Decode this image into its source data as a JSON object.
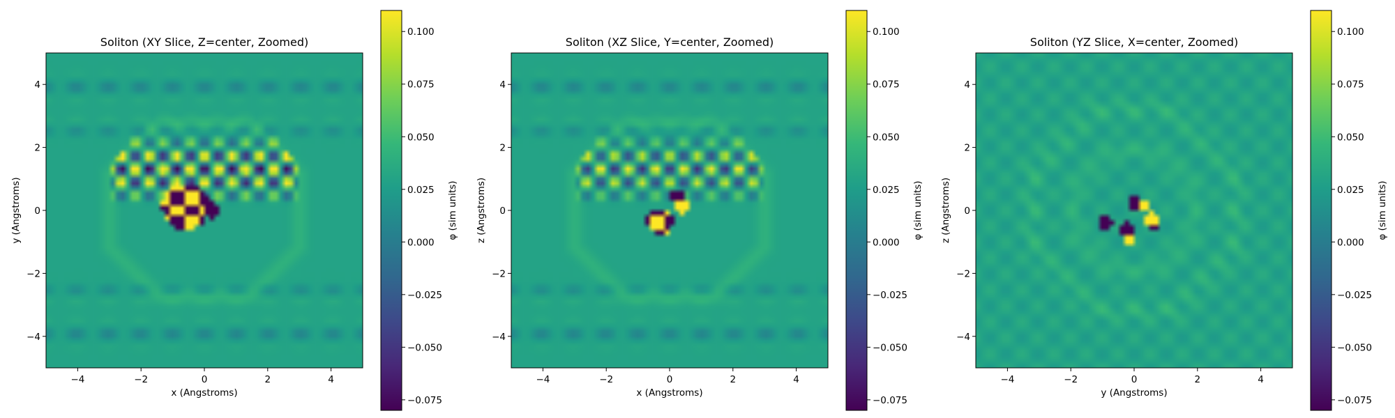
{
  "colors": {
    "viridis": [
      "#440154",
      "#482878",
      "#3e4989",
      "#31688e",
      "#26828e",
      "#1f9e89",
      "#35b779",
      "#6ece58",
      "#b5de2b",
      "#fde725"
    ],
    "axis": "#000000",
    "background": "#ffffff"
  },
  "chart_data": [
    {
      "type": "heatmap",
      "slice": "xy",
      "title": "Soliton (XY Slice, Z=center, Zoomed)",
      "xlabel": "x (Angstroms)",
      "ylabel": "y (Angstroms)",
      "xlim": [
        -5,
        5
      ],
      "ylim": [
        -5,
        5
      ],
      "xticks": [
        -4,
        -2,
        0,
        2,
        4
      ],
      "yticks": [
        -4,
        -2,
        0,
        2,
        4
      ],
      "xtick_labels": [
        "−4",
        "−2",
        "0",
        "2",
        "4"
      ],
      "ytick_labels": [
        "−4",
        "−2",
        "0",
        "2",
        "4"
      ],
      "colorbar": {
        "label": "φ (sim units)",
        "range": [
          -0.08,
          0.11
        ],
        "ticks": [
          -0.075,
          -0.05,
          -0.025,
          0.0,
          0.025,
          0.05,
          0.075,
          0.1
        ],
        "tick_labels": [
          "−0.075",
          "−0.050",
          "−0.025",
          "0.000",
          "0.025",
          "0.050",
          "0.075",
          "0.100"
        ]
      },
      "grid": false
    },
    {
      "type": "heatmap",
      "slice": "xz",
      "title": "Soliton (XZ Slice, Y=center, Zoomed)",
      "xlabel": "x (Angstroms)",
      "ylabel": "z (Angstroms)",
      "xlim": [
        -5,
        5
      ],
      "ylim": [
        -5,
        5
      ],
      "xticks": [
        -4,
        -2,
        0,
        2,
        4
      ],
      "yticks": [
        -4,
        -2,
        0,
        2,
        4
      ],
      "xtick_labels": [
        "−4",
        "−2",
        "0",
        "2",
        "4"
      ],
      "ytick_labels": [
        "−4",
        "−2",
        "0",
        "2",
        "4"
      ],
      "colorbar": {
        "label": "φ (sim units)",
        "range": [
          -0.08,
          0.11
        ],
        "ticks": [
          -0.075,
          -0.05,
          -0.025,
          0.0,
          0.025,
          0.05,
          0.075,
          0.1
        ],
        "tick_labels": [
          "−0.075",
          "−0.050",
          "−0.025",
          "0.000",
          "0.025",
          "0.050",
          "0.075",
          "0.100"
        ]
      },
      "grid": false
    },
    {
      "type": "heatmap",
      "slice": "yz",
      "title": "Soliton (YZ Slice, X=center, Zoomed)",
      "xlabel": "y (Angstroms)",
      "ylabel": "z (Angstroms)",
      "xlim": [
        -5,
        5
      ],
      "ylim": [
        -5,
        5
      ],
      "xticks": [
        -4,
        -2,
        0,
        2,
        4
      ],
      "yticks": [
        -4,
        -2,
        0,
        2,
        4
      ],
      "xtick_labels": [
        "−4",
        "−2",
        "0",
        "2",
        "4"
      ],
      "ytick_labels": [
        "−4",
        "−2",
        "0",
        "2",
        "4"
      ],
      "colorbar": {
        "label": "φ (sim units)",
        "range": [
          -0.08,
          0.11
        ],
        "ticks": [
          -0.075,
          -0.05,
          -0.025,
          0.0,
          0.025,
          0.05,
          0.075,
          0.1
        ],
        "tick_labels": [
          "−0.075",
          "−0.050",
          "−0.025",
          "0.000",
          "0.025",
          "0.050",
          "0.075",
          "0.100"
        ]
      },
      "grid": false
    }
  ]
}
